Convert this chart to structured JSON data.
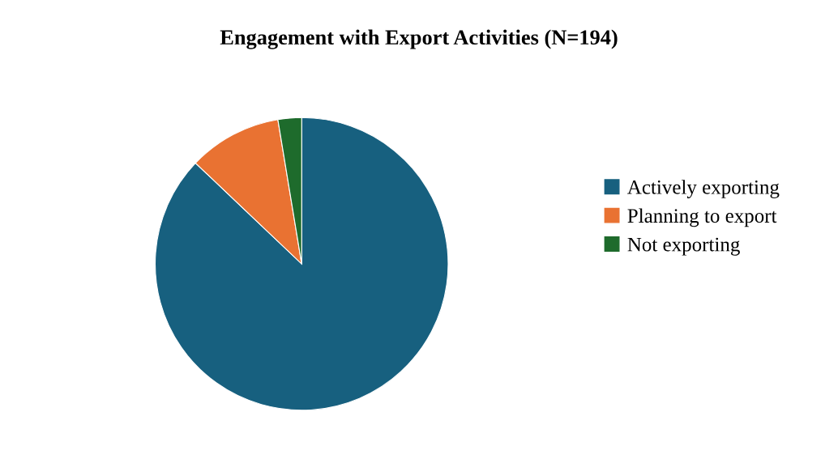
{
  "chart_data": {
    "type": "pie",
    "title": "Engagement with Export Activities (N=194)",
    "categories": [
      "Actively exporting",
      "Planning to export",
      "Not exporting"
    ],
    "values": [
      87.1,
      10.3,
      2.6
    ],
    "colors": [
      "#17607f",
      "#e97232",
      "#1e6b2c"
    ],
    "legend": "right"
  }
}
